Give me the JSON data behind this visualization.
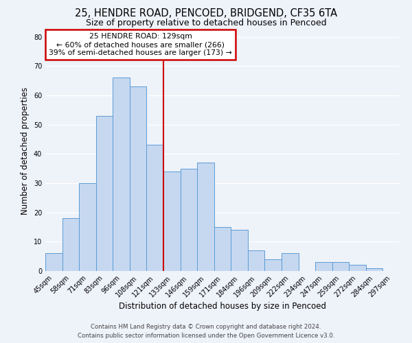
{
  "title": "25, HENDRE ROAD, PENCOED, BRIDGEND, CF35 6TA",
  "subtitle": "Size of property relative to detached houses in Pencoed",
  "xlabel": "Distribution of detached houses by size in Pencoed",
  "ylabel": "Number of detached properties",
  "categories": [
    "45sqm",
    "58sqm",
    "71sqm",
    "83sqm",
    "96sqm",
    "108sqm",
    "121sqm",
    "133sqm",
    "146sqm",
    "159sqm",
    "171sqm",
    "184sqm",
    "196sqm",
    "209sqm",
    "222sqm",
    "234sqm",
    "247sqm",
    "259sqm",
    "272sqm",
    "284sqm",
    "297sqm"
  ],
  "values": [
    6,
    18,
    30,
    53,
    66,
    63,
    43,
    34,
    35,
    37,
    15,
    14,
    7,
    4,
    6,
    0,
    3,
    3,
    2,
    1,
    0
  ],
  "bar_color": "#c5d8f0",
  "bar_edge_color": "#5b9bd5",
  "vline_x_index": 7,
  "vline_color": "#cc0000",
  "annotation_line1": "25 HENDRE ROAD: 129sqm",
  "annotation_line2": "← 60% of detached houses are smaller (266)",
  "annotation_line3": "39% of semi-detached houses are larger (173) →",
  "annotation_box_edge_color": "#cc0000",
  "annotation_box_face_color": "#ffffff",
  "ylim": [
    0,
    82
  ],
  "yticks": [
    0,
    10,
    20,
    30,
    40,
    50,
    60,
    70,
    80
  ],
  "footer1": "Contains HM Land Registry data © Crown copyright and database right 2024.",
  "footer2": "Contains public sector information licensed under the Open Government Licence v3.0.",
  "background_color": "#eef2f9",
  "grid_color": "#ffffff",
  "title_fontsize": 10.5,
  "subtitle_fontsize": 9,
  "axis_label_fontsize": 8.5,
  "tick_fontsize": 7,
  "annotation_fontsize": 7.8,
  "footer_fontsize": 6.2
}
